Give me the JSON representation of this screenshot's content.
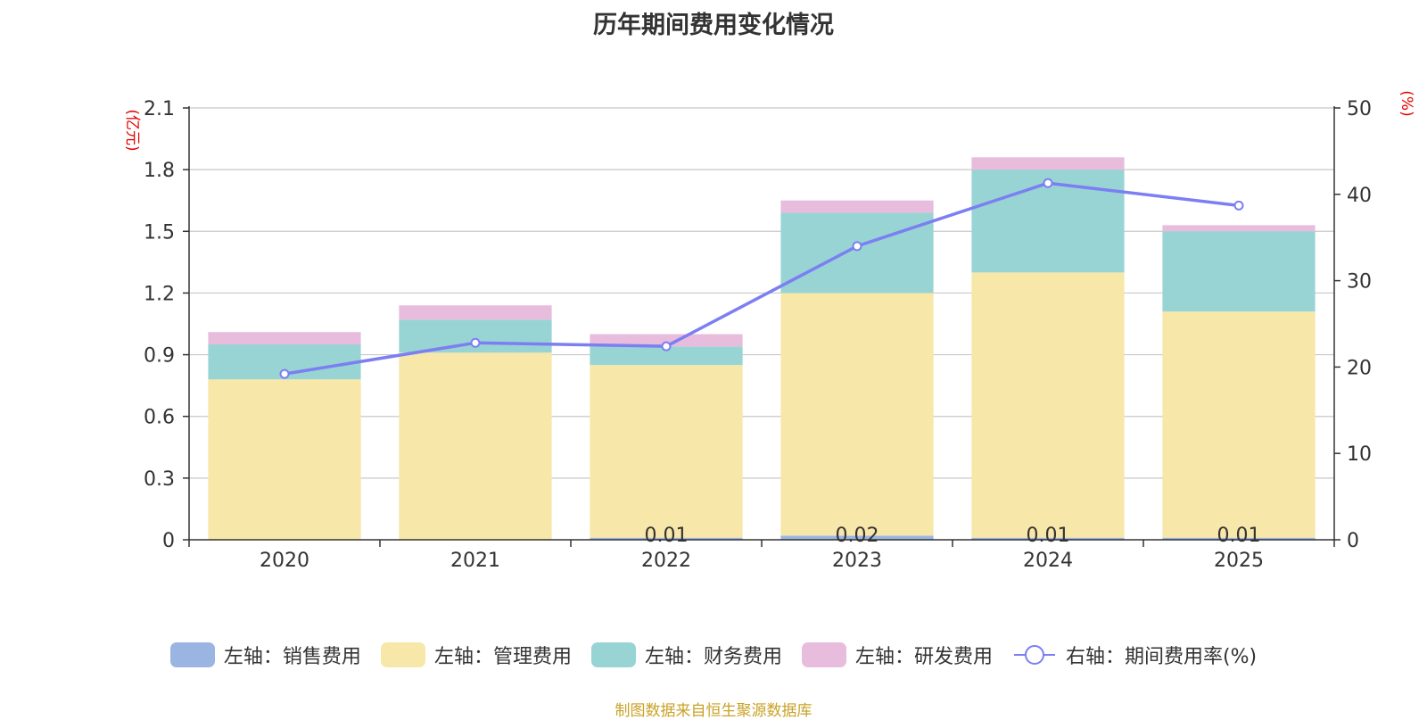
{
  "chart_data": {
    "type": "bar",
    "title": "历年期间费用变化情况",
    "categories": [
      "2020",
      "2021",
      "2022",
      "2023",
      "2024",
      "2025"
    ],
    "left_axis": {
      "unit_label": "(亿元)",
      "ylim": [
        0,
        2.1
      ],
      "ticks": [
        "0",
        "0.3",
        "0.6",
        "0.9",
        "1.2",
        "1.5",
        "1.8",
        "2.1"
      ]
    },
    "right_axis": {
      "unit_label": "(%)",
      "ylim": [
        0,
        50
      ],
      "ticks": [
        "0",
        "10",
        "20",
        "30",
        "40",
        "50"
      ]
    },
    "series": [
      {
        "name": "左轴：销售费用",
        "type": "stacked-bar",
        "axis": "left",
        "color": "#9bb5e3",
        "values": [
          0,
          0,
          0.01,
          0.02,
          0.01,
          0.01
        ],
        "data_labels": [
          "",
          "",
          "0.01",
          "0.02",
          "0.01",
          "0.01"
        ]
      },
      {
        "name": "左轴：管理费用",
        "type": "stacked-bar",
        "axis": "left",
        "color": "#f7e7a8",
        "values": [
          0.78,
          0.91,
          0.84,
          1.18,
          1.29,
          1.1
        ]
      },
      {
        "name": "左轴：财务费用",
        "type": "stacked-bar",
        "axis": "left",
        "color": "#98d4d4",
        "values": [
          0.17,
          0.16,
          0.09,
          0.39,
          0.5,
          0.39
        ]
      },
      {
        "name": "左轴：研发费用",
        "type": "stacked-bar",
        "axis": "left",
        "color": "#e7bcdc",
        "values": [
          0.06,
          0.07,
          0.06,
          0.06,
          0.06,
          0.03
        ]
      },
      {
        "name": "右轴：期间费用率(%)",
        "type": "line",
        "axis": "right",
        "color": "#7b7ff2",
        "values": [
          19.2,
          22.8,
          22.4,
          34.0,
          41.3,
          38.7
        ]
      }
    ]
  },
  "source_note": "制图数据来自恒生聚源数据库"
}
